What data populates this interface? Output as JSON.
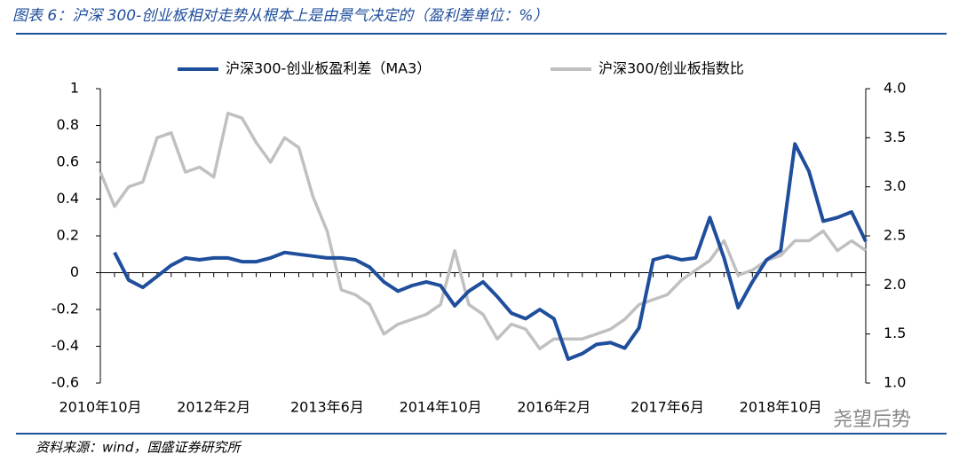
{
  "chart_data": {
    "type": "line",
    "title": "图表 6：沪深 300-创业板相对走势从根本上是由景气决定的（盈利差单位：%）",
    "source": "资料来源：wind，国盛证券研究所",
    "watermark": "尧望后势",
    "categories": [
      "2010年10月",
      null,
      null,
      null,
      null,
      null,
      null,
      null,
      "2012年2月",
      null,
      null,
      null,
      null,
      null,
      null,
      null,
      "2013年6月",
      null,
      null,
      null,
      null,
      null,
      null,
      null,
      "2014年10月",
      null,
      null,
      null,
      null,
      null,
      null,
      null,
      "2016年2月",
      null,
      null,
      null,
      null,
      null,
      null,
      null,
      "2017年6月",
      null,
      null,
      null,
      null,
      null,
      null,
      null,
      "2018年10月",
      null,
      null,
      null,
      null,
      null,
      null
    ],
    "series": [
      {
        "name": "沪深300-创业板盈利差（MA3）",
        "color": "#1f4e9c",
        "axis": "y",
        "values": [
          null,
          0.11,
          -0.04,
          -0.08,
          -0.02,
          0.04,
          0.08,
          0.07,
          0.08,
          0.08,
          0.06,
          0.06,
          0.08,
          0.11,
          0.1,
          0.09,
          0.08,
          0.08,
          0.07,
          0.03,
          -0.05,
          -0.1,
          -0.07,
          -0.05,
          -0.07,
          -0.18,
          -0.1,
          -0.05,
          -0.13,
          -0.22,
          -0.25,
          -0.2,
          -0.25,
          -0.47,
          -0.44,
          -0.39,
          -0.38,
          -0.41,
          -0.3,
          0.07,
          0.09,
          0.07,
          0.08,
          0.3,
          0.08,
          -0.19,
          -0.05,
          0.07,
          0.12,
          0.7,
          0.55,
          0.28,
          0.3,
          0.33,
          0.17
        ]
      },
      {
        "name": "沪深300/创业板指数比",
        "color": "#c0c0c0",
        "axis": "y2",
        "values": [
          3.15,
          2.8,
          3.0,
          3.05,
          3.5,
          3.55,
          3.15,
          3.2,
          3.1,
          3.75,
          3.7,
          3.45,
          3.25,
          3.5,
          3.4,
          2.9,
          2.55,
          1.95,
          1.9,
          1.8,
          1.5,
          1.6,
          1.65,
          1.7,
          1.8,
          2.35,
          1.8,
          1.7,
          1.45,
          1.6,
          1.55,
          1.35,
          1.45,
          1.45,
          1.45,
          1.5,
          1.55,
          1.65,
          1.8,
          1.85,
          1.9,
          2.05,
          2.15,
          2.25,
          2.45,
          2.1,
          2.15,
          2.25,
          2.3,
          2.45,
          2.45,
          2.55,
          2.35,
          2.45,
          2.35
        ]
      }
    ],
    "ylim": [
      -0.6,
      1
    ],
    "yticks": [
      1,
      0.8,
      0.6,
      0.4,
      0.2,
      0,
      -0.2,
      -0.4,
      -0.6
    ],
    "y2lim": [
      1.0,
      4.0
    ],
    "y2ticks": [
      {
        "value": 4,
        "label": "4.0"
      },
      {
        "value": 3.5,
        "label": "3.5"
      },
      {
        "value": 3,
        "label": "3.0"
      },
      {
        "value": 2.5,
        "label": "2.5"
      },
      {
        "value": 2,
        "label": "2.0"
      },
      {
        "value": 1.5,
        "label": "1.5"
      },
      {
        "value": 1,
        "label": "1.0"
      }
    ],
    "legend": "top",
    "grid": false
  }
}
